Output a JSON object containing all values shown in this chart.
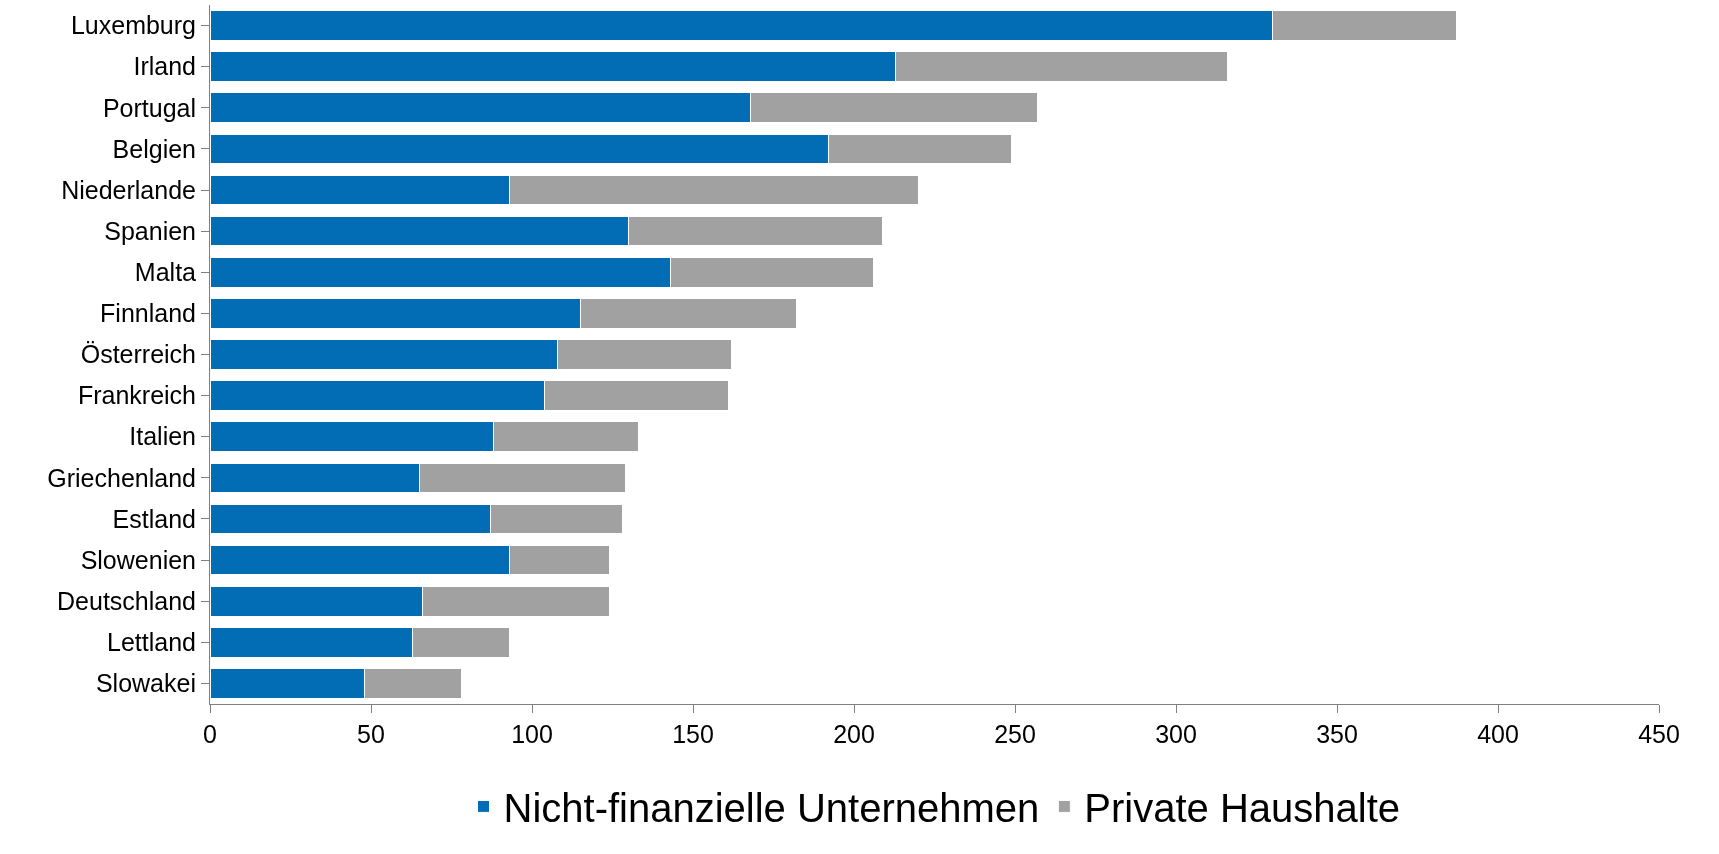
{
  "chart_data": {
    "type": "bar",
    "orientation": "horizontal",
    "stacked": true,
    "categories": [
      "Luxemburg",
      "Irland",
      "Portugal",
      "Belgien",
      "Niederlande",
      "Spanien",
      "Malta",
      "Finnland",
      "Österreich",
      "Frankreich",
      "Italien",
      "Griechenland",
      "Estland",
      "Slowenien",
      "Deutschland",
      "Lettland",
      "Slowakei"
    ],
    "series": [
      {
        "name": "Nicht-finanzielle Unternehmen",
        "color": "#026cb5",
        "values": [
          330,
          213,
          168,
          192,
          93,
          130,
          143,
          115,
          108,
          104,
          88,
          65,
          87,
          93,
          66,
          63,
          48
        ]
      },
      {
        "name": "Private Haushalte",
        "color": "#a1a1a1",
        "values": [
          57,
          103,
          89,
          57,
          127,
          79,
          63,
          67,
          54,
          57,
          45,
          64,
          41,
          31,
          58,
          30,
          30
        ]
      }
    ],
    "xlim": [
      0,
      450
    ],
    "xticks": [
      0,
      50,
      100,
      150,
      200,
      250,
      300,
      350,
      400,
      450
    ],
    "legend": "bottom"
  }
}
